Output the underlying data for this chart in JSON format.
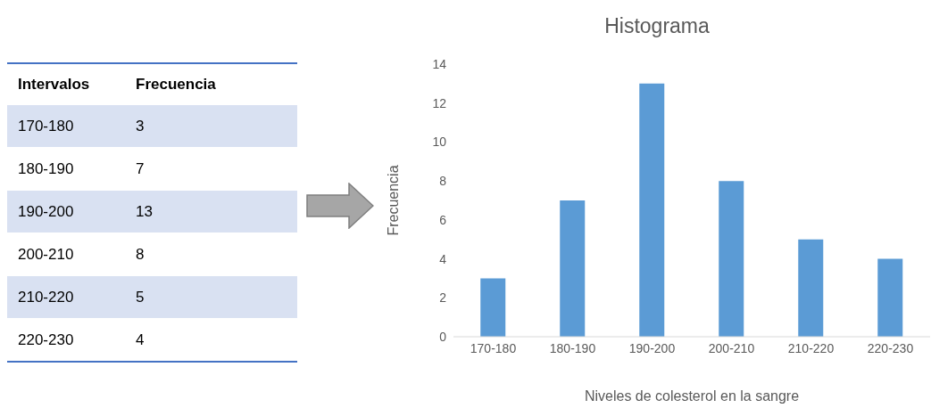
{
  "chart_data": [
    {
      "type": "other",
      "annotations": [
        "Intervalos",
        "Frecuencia"
      ],
      "categories": [
        "170-180",
        "180-190",
        "190-200",
        "200-210",
        "210-220",
        "220-230"
      ],
      "values": [
        3,
        7,
        13,
        8,
        5,
        4
      ],
      "data_labels": true
    },
    {
      "type": "bar",
      "title": "Histograma",
      "xlabel": "Niveles de colesterol en la sangre",
      "ylabel": "Frecuencia",
      "categories": [
        "170-180",
        "180-190",
        "190-200",
        "200-210",
        "210-220",
        "220-230"
      ],
      "values": [
        3,
        7,
        13,
        8,
        5,
        4
      ],
      "color": "#5b9bd5",
      "ylim": [
        0,
        14
      ],
      "yticks": [
        0,
        2,
        4,
        6,
        8,
        10,
        12,
        14
      ]
    }
  ]
}
